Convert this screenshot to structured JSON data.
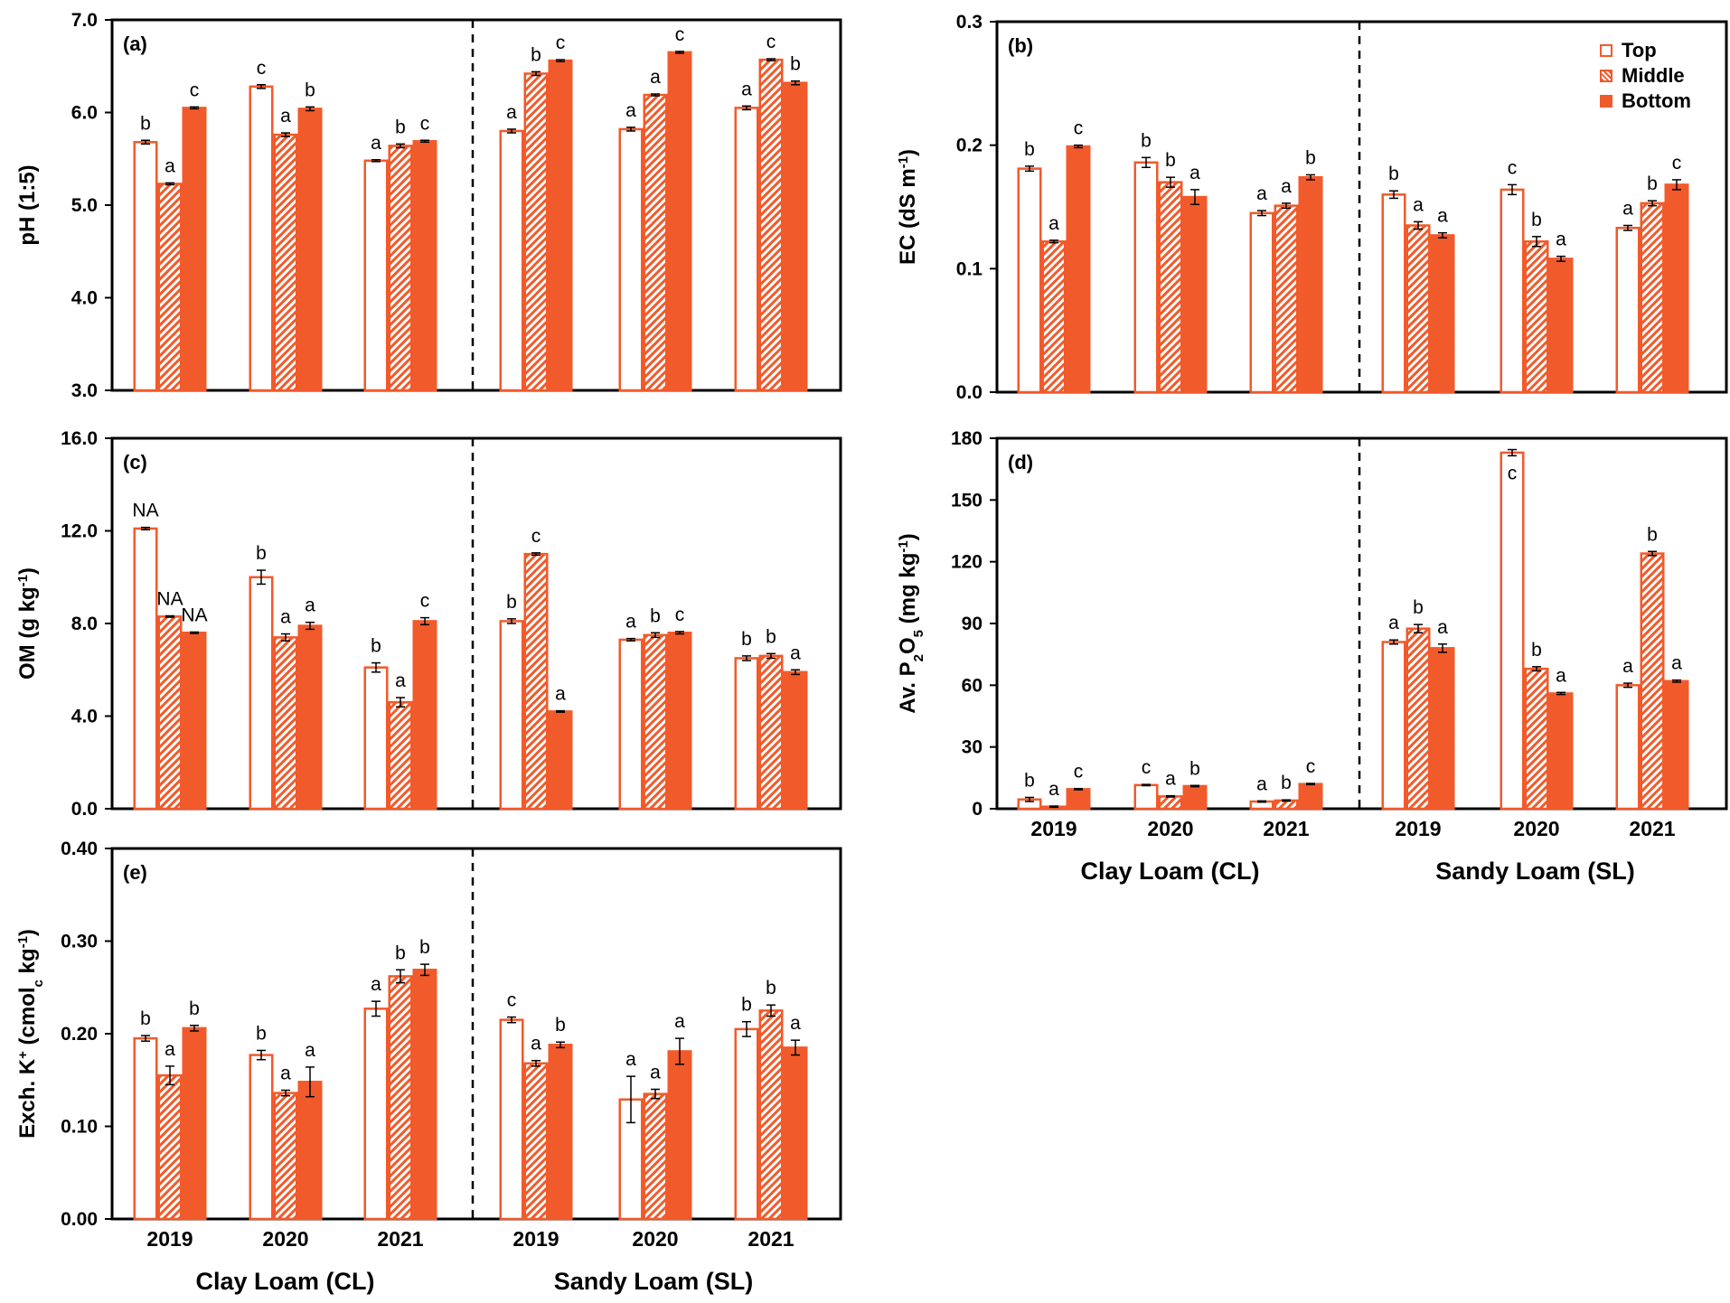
{
  "colors": {
    "bar": "#f15a2b",
    "axis": "#000000",
    "hatch_bg": "#ffffff"
  },
  "legend": {
    "items": [
      {
        "label": "Top",
        "style": "open"
      },
      {
        "label": "Middle",
        "style": "hatched"
      },
      {
        "label": "Bottom",
        "style": "solid"
      }
    ]
  },
  "chart_data": [
    {
      "type": "bar",
      "panel_label": "(a)",
      "ylabel": "pH (1:5)",
      "ylim": [
        3,
        7
      ],
      "yticks": [
        "3.0",
        "4.0",
        "5.0",
        "6.0",
        "7.0"
      ],
      "years": [
        "2019",
        "2020",
        "2021"
      ],
      "soil_groups": [
        "Clay Loam (CL)",
        "Sandy Loam (SL)"
      ],
      "show_years": false,
      "show_groups": false,
      "series": [
        {
          "name": "Top",
          "values": [
            5.68,
            6.28,
            5.48,
            5.8,
            5.82,
            6.05
          ],
          "errors": [
            0.02,
            0.02,
            0.01,
            0.02,
            0.02,
            0.02
          ],
          "letters": [
            "b",
            "c",
            "a",
            "a",
            "a",
            "a"
          ],
          "letter_pos": [
            "above",
            "above",
            "above",
            "above",
            "above",
            "above"
          ]
        },
        {
          "name": "Middle",
          "values": [
            5.23,
            5.76,
            5.64,
            6.42,
            6.19,
            6.57
          ],
          "errors": [
            0.01,
            0.02,
            0.02,
            0.02,
            0.01,
            0.01
          ],
          "letters": [
            "a",
            "a",
            "b",
            "b",
            "a",
            "c"
          ],
          "letter_pos": [
            "above",
            "above",
            "above",
            "above",
            "above",
            "above"
          ]
        },
        {
          "name": "Bottom",
          "values": [
            6.05,
            6.04,
            5.69,
            6.56,
            6.65,
            6.32
          ],
          "errors": [
            0.01,
            0.02,
            0.01,
            0.01,
            0.01,
            0.02
          ],
          "letters": [
            "c",
            "b",
            "c",
            "c",
            "c",
            "b"
          ],
          "letter_pos": [
            "above",
            "above",
            "above",
            "above",
            "above",
            "above"
          ]
        }
      ]
    },
    {
      "type": "bar",
      "panel_label": "(b)",
      "ylabel": "EC (dS m",
      "ylabel_sup": "-1",
      "ylabel_end": ")",
      "ylim": [
        0,
        0.3
      ],
      "yticks": [
        "0.0",
        "0.1",
        "0.2",
        "0.3"
      ],
      "years": [
        "2019",
        "2020",
        "2021"
      ],
      "soil_groups": [
        "Clay Loam (CL)",
        "Sandy Loam (SL)"
      ],
      "show_years": false,
      "show_groups": false,
      "series": [
        {
          "name": "Top",
          "values": [
            0.181,
            0.186,
            0.145,
            0.16,
            0.164,
            0.133
          ],
          "errors": [
            0.002,
            0.004,
            0.002,
            0.003,
            0.004,
            0.002
          ],
          "letters": [
            "b",
            "b",
            "a",
            "b",
            "c",
            "a"
          ],
          "letter_pos": [
            "above",
            "above",
            "above",
            "above",
            "above",
            "above"
          ]
        },
        {
          "name": "Middle",
          "values": [
            0.122,
            0.17,
            0.151,
            0.135,
            0.122,
            0.153
          ],
          "errors": [
            0.001,
            0.004,
            0.002,
            0.003,
            0.004,
            0.002
          ],
          "letters": [
            "a",
            "b",
            "a",
            "a",
            "b",
            "b"
          ],
          "letter_pos": [
            "above",
            "above",
            "above",
            "above",
            "above",
            "above"
          ]
        },
        {
          "name": "Bottom",
          "values": [
            0.199,
            0.158,
            0.174,
            0.127,
            0.108,
            0.168
          ],
          "errors": [
            0.001,
            0.006,
            0.002,
            0.002,
            0.002,
            0.004
          ],
          "letters": [
            "c",
            "a",
            "b",
            "a",
            "a",
            "c"
          ],
          "letter_pos": [
            "above",
            "above",
            "above",
            "above",
            "above",
            "above"
          ]
        }
      ]
    },
    {
      "type": "bar",
      "panel_label": "(c)",
      "ylabel": "OM (g kg",
      "ylabel_sup": "-1",
      "ylabel_end": ")",
      "ylim": [
        0,
        16
      ],
      "yticks": [
        "0.0",
        "4.0",
        "8.0",
        "12.0",
        "16.0"
      ],
      "years": [
        "2019",
        "2020",
        "2021"
      ],
      "soil_groups": [
        "Clay Loam (CL)",
        "Sandy Loam (SL)"
      ],
      "show_years": false,
      "show_groups": false,
      "series": [
        {
          "name": "Top",
          "values": [
            12.1,
            10.0,
            6.1,
            8.1,
            7.3,
            6.5
          ],
          "errors": [
            0.05,
            0.3,
            0.2,
            0.1,
            0.05,
            0.1
          ],
          "letters": [
            "NA",
            "b",
            "b",
            "b",
            "a",
            "b"
          ],
          "letter_pos": [
            "above",
            "above",
            "above",
            "above",
            "above",
            "above"
          ]
        },
        {
          "name": "Middle",
          "values": [
            8.3,
            7.4,
            4.6,
            11.0,
            7.5,
            6.6
          ],
          "errors": [
            0.03,
            0.15,
            0.2,
            0.05,
            0.1,
            0.1
          ],
          "letters": [
            "NA",
            "a",
            "a",
            "c",
            "b",
            "b"
          ],
          "letter_pos": [
            "above",
            "above",
            "above",
            "above",
            "above",
            "above"
          ]
        },
        {
          "name": "Bottom",
          "values": [
            7.6,
            7.9,
            8.1,
            4.2,
            7.6,
            5.9
          ],
          "errors": [
            0.03,
            0.15,
            0.15,
            0.03,
            0.05,
            0.1
          ],
          "letters": [
            "NA",
            "a",
            "c",
            "a",
            "c",
            "a"
          ],
          "letter_pos": [
            "above",
            "above",
            "above",
            "above",
            "above",
            "above"
          ]
        }
      ]
    },
    {
      "type": "bar",
      "panel_label": "(d)",
      "ylabel": "Av. P",
      "ylabel_sub1": "2",
      "ylabel_mid": "O",
      "ylabel_sub2": "5",
      "ylabel_tail": " (mg kg",
      "ylabel_sup": "-1",
      "ylabel_end": ")",
      "ylim": [
        0,
        180
      ],
      "yticks": [
        "0",
        "30",
        "60",
        "90",
        "120",
        "150",
        "180"
      ],
      "years": [
        "2019",
        "2020",
        "2021"
      ],
      "soil_groups": [
        "Clay Loam (CL)",
        "Sandy Loam (SL)"
      ],
      "show_years": true,
      "show_groups": true,
      "series": [
        {
          "name": "Top",
          "values": [
            4.5,
            11.5,
            3.5,
            81,
            173,
            60
          ],
          "errors": [
            1.0,
            0.3,
            0.3,
            1.0,
            1.5,
            1.0
          ],
          "letters": [
            "b",
            "c",
            "a",
            "a",
            "c",
            "a"
          ],
          "letter_pos": [
            "above",
            "above",
            "above",
            "above",
            "inside",
            "above"
          ]
        },
        {
          "name": "Middle",
          "values": [
            1.0,
            6.0,
            4.0,
            87.5,
            68,
            124
          ],
          "errors": [
            0.3,
            0.3,
            0.3,
            2.0,
            1.0,
            1.0
          ],
          "letters": [
            "a",
            "a",
            "b",
            "b",
            "b",
            "b"
          ],
          "letter_pos": [
            "above",
            "above",
            "above",
            "above",
            "above",
            "above"
          ]
        },
        {
          "name": "Bottom",
          "values": [
            9.5,
            11.0,
            12.0,
            78,
            56,
            62
          ],
          "errors": [
            0.3,
            0.3,
            0.3,
            2.0,
            0.5,
            0.5
          ],
          "letters": [
            "c",
            "b",
            "c",
            "a",
            "a",
            "a"
          ],
          "letter_pos": [
            "above",
            "above",
            "above",
            "above",
            "above",
            "above"
          ]
        }
      ]
    },
    {
      "type": "bar",
      "panel_label": "(e)",
      "ylabel": "Exch. K",
      "ylabel_sup0": "+",
      "ylabel_tail": " (cmol",
      "ylabel_sub1": "c",
      "ylabel_mid2": " kg",
      "ylabel_sup": "-1",
      "ylabel_end": ")",
      "ylim": [
        0,
        0.4
      ],
      "yticks": [
        "0.00",
        "0.10",
        "0.20",
        "0.30",
        "0.40"
      ],
      "years": [
        "2019",
        "2020",
        "2021"
      ],
      "soil_groups": [
        "Clay Loam (CL)",
        "Sandy Loam (SL)"
      ],
      "show_years": true,
      "show_groups": true,
      "series": [
        {
          "name": "Top",
          "values": [
            0.195,
            0.177,
            0.227,
            0.215,
            0.129,
            0.205
          ],
          "errors": [
            0.003,
            0.005,
            0.008,
            0.003,
            0.025,
            0.008
          ],
          "letters": [
            "b",
            "b",
            "a",
            "c",
            "a",
            "b"
          ],
          "letter_pos": [
            "above",
            "above",
            "above",
            "above",
            "above",
            "above"
          ]
        },
        {
          "name": "Middle",
          "values": [
            0.155,
            0.136,
            0.262,
            0.168,
            0.135,
            0.225
          ],
          "errors": [
            0.01,
            0.003,
            0.007,
            0.003,
            0.005,
            0.006
          ],
          "letters": [
            "a",
            "a",
            "b",
            "a",
            "a",
            "b"
          ],
          "letter_pos": [
            "above",
            "above",
            "above",
            "above",
            "above",
            "above"
          ]
        },
        {
          "name": "Bottom",
          "values": [
            0.206,
            0.148,
            0.269,
            0.188,
            0.181,
            0.185
          ],
          "errors": [
            0.003,
            0.016,
            0.006,
            0.003,
            0.014,
            0.008
          ],
          "letters": [
            "b",
            "a",
            "b",
            "b",
            "a",
            "a"
          ],
          "letter_pos": [
            "above",
            "above",
            "above",
            "above",
            "above",
            "above"
          ]
        }
      ]
    }
  ]
}
